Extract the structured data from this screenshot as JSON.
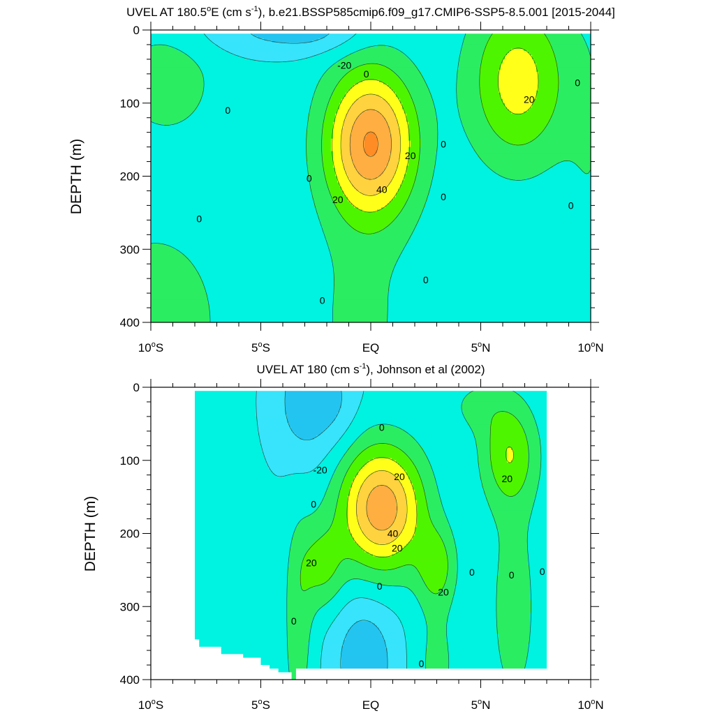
{
  "chart_data": [
    {
      "type": "contour",
      "title": "UVEL AT 180.5°E (cm s-1), b.e21.BSSP585cmip6.f09_g17.CMIP6-SSP5-8.5.001 [2015-2044]",
      "title_parts": {
        "pre": "UVEL AT 180.5",
        "deg": "o",
        "mid": "E (cm s",
        "sup": "-1",
        "post": "), b.e21.BSSP585cmip6.f09_g17.CMIP6-SSP5-8.5.001 [2015-2044]"
      },
      "xlabel": "",
      "ylabel": "DEPTH (m)",
      "xlim": [
        -10,
        10
      ],
      "ylim": [
        0,
        400
      ],
      "x_ticks": [
        {
          "value": -10,
          "num": "10",
          "hemi": "S"
        },
        {
          "value": -5,
          "num": "5",
          "hemi": "S"
        },
        {
          "value": 0,
          "num": "EQ",
          "hemi": ""
        },
        {
          "value": 5,
          "num": "5",
          "hemi": "N"
        },
        {
          "value": 10,
          "num": "10",
          "hemi": "N"
        }
      ],
      "y_ticks": [
        "0",
        "100",
        "200",
        "300",
        "400"
      ],
      "contour_interval": 10,
      "field": {
        "base": -7,
        "blobs": [
          {
            "x": 0,
            "y": 155,
            "amp": 58,
            "sx": 2.0,
            "sy": 100
          },
          {
            "x": 6.7,
            "y": 70,
            "amp": 32,
            "sx": 2.2,
            "sy": 110
          },
          {
            "x": -9.3,
            "y": 70,
            "amp": 13,
            "sx": 2.2,
            "sy": 75
          },
          {
            "x": -9.8,
            "y": 400,
            "amp": 14,
            "sx": 3.0,
            "sy": 130
          },
          {
            "x": -4.5,
            "y": 0,
            "amp": -14,
            "sx": 3.5,
            "sy": 35
          },
          {
            "x": -2.2,
            "y": 0,
            "amp": -8,
            "sx": 2.0,
            "sy": 30
          },
          {
            "x": -0.5,
            "y": 400,
            "amp": 9,
            "sx": 2.4,
            "sy": 150
          },
          {
            "x": 10,
            "y": 200,
            "amp": 6,
            "sx": 1.2,
            "sy": 250
          }
        ]
      },
      "contour_labels": [
        {
          "value": "-20",
          "x": -1.2,
          "y": 48
        },
        {
          "value": "0",
          "x": -0.2,
          "y": 60
        },
        {
          "value": "0",
          "x": -6.5,
          "y": 110
        },
        {
          "value": "0",
          "x": -2.8,
          "y": 203
        },
        {
          "value": "0",
          "x": -7.8,
          "y": 258
        },
        {
          "value": "0",
          "x": -2.2,
          "y": 370
        },
        {
          "value": "20",
          "x": 1.8,
          "y": 172
        },
        {
          "value": "40",
          "x": 0.5,
          "y": 218
        },
        {
          "value": "20",
          "x": -1.5,
          "y": 232
        },
        {
          "value": "0",
          "x": 3.3,
          "y": 156
        },
        {
          "value": "0",
          "x": 3.3,
          "y": 228
        },
        {
          "value": "0",
          "x": 2.5,
          "y": 342
        },
        {
          "value": "20",
          "x": 7.2,
          "y": 95
        },
        {
          "value": "0",
          "x": 9.4,
          "y": 72
        },
        {
          "value": "0",
          "x": 9.1,
          "y": 240
        }
      ],
      "mask": null
    },
    {
      "type": "contour",
      "title": "UVEL AT 180 (cm s-1), Johnson et al (2002)",
      "title_parts": {
        "pre": "UVEL AT 180",
        "deg": "",
        "mid": " (cm s",
        "sup": "-1",
        "post": "), Johnson et al (2002)"
      },
      "xlabel": "",
      "ylabel": "DEPTH (m)",
      "xlim": [
        -10,
        10
      ],
      "ylim": [
        0,
        400
      ],
      "x_ticks": [
        {
          "value": -10,
          "num": "10",
          "hemi": "S"
        },
        {
          "value": -5,
          "num": "5",
          "hemi": "S"
        },
        {
          "value": 0,
          "num": "EQ",
          "hemi": ""
        },
        {
          "value": 5,
          "num": "5",
          "hemi": "N"
        },
        {
          "value": 10,
          "num": "10",
          "hemi": "N"
        }
      ],
      "y_ticks": [
        "0",
        "100",
        "200",
        "300",
        "400"
      ],
      "contour_interval": 10,
      "field": {
        "base": -9,
        "blobs": [
          {
            "x": 0.5,
            "y": 165,
            "amp": 56,
            "sx": 1.9,
            "sy": 85
          },
          {
            "x": -2.2,
            "y": 245,
            "amp": 20,
            "sx": 1.0,
            "sy": 60
          },
          {
            "x": 3.0,
            "y": 245,
            "amp": 22,
            "sx": 0.9,
            "sy": 55
          },
          {
            "x": 6.3,
            "y": 90,
            "amp": 26,
            "sx": 1.3,
            "sy": 70
          },
          {
            "x": 4.8,
            "y": 25,
            "amp": 10,
            "sx": 1.5,
            "sy": 40
          },
          {
            "x": -0.3,
            "y": 375,
            "amp": -20,
            "sx": 1.4,
            "sy": 85
          },
          {
            "x": -3.0,
            "y": 20,
            "amp": -18,
            "sx": 1.3,
            "sy": 80
          },
          {
            "x": -1.5,
            "y": 20,
            "amp": -9,
            "sx": 1.0,
            "sy": 60
          },
          {
            "x": 6.5,
            "y": 300,
            "amp": 13,
            "sx": 1.3,
            "sy": 180
          },
          {
            "x": -3.3,
            "y": 330,
            "amp": 15,
            "sx": 0.7,
            "sy": 150
          },
          {
            "x": 3.0,
            "y": 380,
            "amp": 12,
            "sx": 1.0,
            "sy": 90
          },
          {
            "x": -6.0,
            "y": 300,
            "amp": 9,
            "sx": 0.5,
            "sy": 60
          },
          {
            "x": -7.8,
            "y": 80,
            "amp": 8,
            "sx": 0.5,
            "sy": 50
          }
        ]
      },
      "contour_labels": [
        {
          "value": "0",
          "x": 0.5,
          "y": 55
        },
        {
          "value": "-20",
          "x": -2.3,
          "y": 113
        },
        {
          "value": "0",
          "x": -2.6,
          "y": 160
        },
        {
          "value": "20",
          "x": 1.3,
          "y": 122
        },
        {
          "value": "40",
          "x": 1.0,
          "y": 200
        },
        {
          "value": "20",
          "x": 1.2,
          "y": 220
        },
        {
          "value": "20",
          "x": -2.7,
          "y": 240
        },
        {
          "value": "20",
          "x": 3.3,
          "y": 280
        },
        {
          "value": "0",
          "x": 0.4,
          "y": 272
        },
        {
          "value": "0",
          "x": -3.5,
          "y": 320
        },
        {
          "value": "0",
          "x": 2.3,
          "y": 378
        },
        {
          "value": "0",
          "x": 4.6,
          "y": 253
        },
        {
          "value": "0",
          "x": 6.4,
          "y": 257
        },
        {
          "value": "0",
          "x": 7.8,
          "y": 252
        },
        {
          "value": "20",
          "x": 6.2,
          "y": 125
        }
      ],
      "mask": {
        "x_left": -8.0,
        "x_right": 8.0,
        "top": 5,
        "bottom_right": 385,
        "bottom_left_steps": [
          [
            -8.0,
            335
          ],
          [
            -7.8,
            345
          ],
          [
            -6.8,
            355
          ],
          [
            -5.8,
            365
          ],
          [
            -5.0,
            370
          ],
          [
            -4.6,
            380
          ],
          [
            -4.2,
            385
          ],
          [
            -3.6,
            390
          ],
          [
            -3.4,
            400
          ]
        ]
      }
    }
  ]
}
